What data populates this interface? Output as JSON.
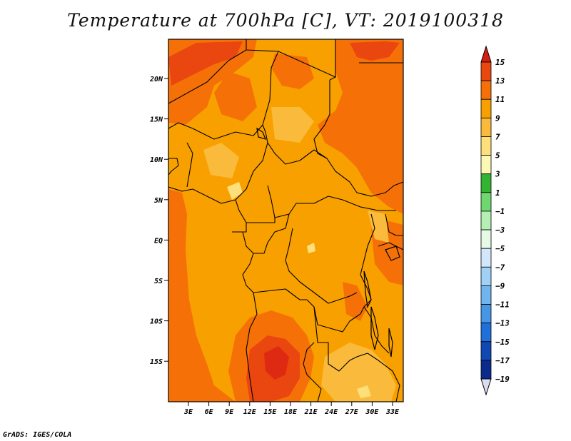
{
  "title": "Temperature at 700hPa [C], VT: 2019100318",
  "credit": "GrADS: IGES/COLA",
  "map": {
    "lat_ticks": [
      "20N",
      "15N",
      "10N",
      "5N",
      "EQ",
      "5S",
      "10S",
      "15S"
    ],
    "lon_ticks": [
      "3E",
      "6E",
      "9E",
      "12E",
      "15E",
      "18E",
      "21E",
      "24E",
      "27E",
      "30E",
      "33E"
    ],
    "colors": {
      "c9_11": "#f8a000",
      "c11_13": "#f57108",
      "c13_15": "#ea4610",
      "c15plus": "#de2a12",
      "c7_9": "#fabb3c",
      "c5_7": "#fde07c"
    }
  },
  "colorbar": {
    "labels": [
      "15",
      "13",
      "11",
      "9",
      "7",
      "5",
      "3",
      "1",
      "−1",
      "−3",
      "−5",
      "−7",
      "−9",
      "−11",
      "−13",
      "−15",
      "−17",
      "−19"
    ],
    "colors": [
      "#d41e10",
      "#ea4610",
      "#f57108",
      "#f8a000",
      "#fabb3c",
      "#fde07c",
      "#fdf7b4",
      "#32b432",
      "#6ed86e",
      "#b4f0b4",
      "#e6fae6",
      "#d2e8fa",
      "#a0d0f6",
      "#70b4f0",
      "#4696e8",
      "#2070dc",
      "#1048b4",
      "#0a2a8c",
      "#050a60",
      "#dcdcf0"
    ],
    "top_cap_color": "#d41e10",
    "bottom_cap_color": "#dcdcf0"
  }
}
